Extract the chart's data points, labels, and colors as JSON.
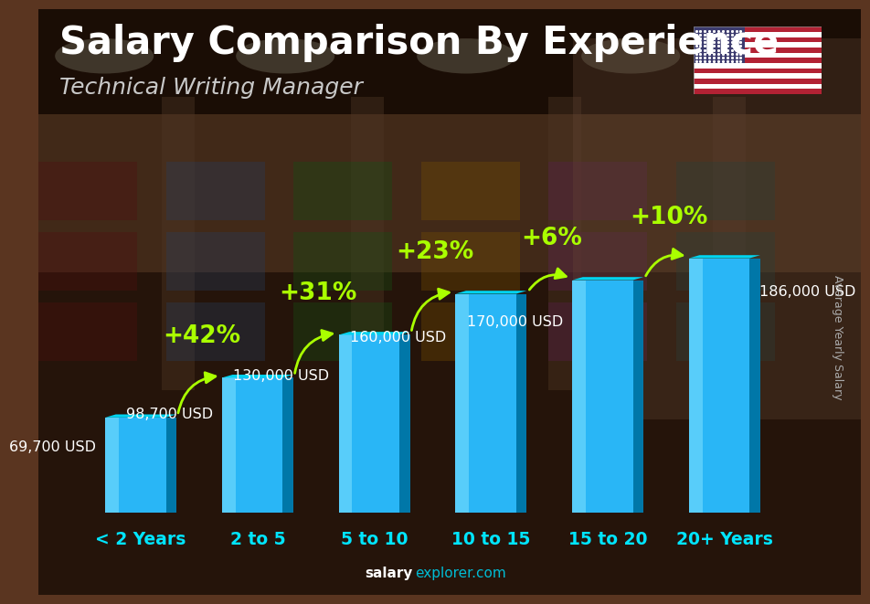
{
  "title": "Salary Comparison By Experience",
  "subtitle": "Technical Writing Manager",
  "ylabel": "Average Yearly Salary",
  "watermark": "salaryexplorer.com",
  "categories": [
    "< 2 Years",
    "2 to 5",
    "5 to 10",
    "10 to 15",
    "15 to 20",
    "20+ Years"
  ],
  "values": [
    69700,
    98700,
    130000,
    160000,
    170000,
    186000
  ],
  "value_labels": [
    "69,700 USD",
    "98,700 USD",
    "130,000 USD",
    "160,000 USD",
    "170,000 USD",
    "186,000 USD"
  ],
  "pct_labels": [
    "+42%",
    "+31%",
    "+23%",
    "+6%",
    "+10%"
  ],
  "bar_color_main": "#29b6f6",
  "bar_color_side": "#0077a8",
  "bar_color_top": "#00d4f0",
  "bar_highlight": "#80e0ff",
  "bg_color": "#5a3520",
  "title_color": "#ffffff",
  "subtitle_color": "#c8c8c8",
  "label_color": "#ffffff",
  "pct_color": "#aaff00",
  "category_color": "#00e5ff",
  "watermark_bold_color": "#ffffff",
  "watermark_normal_color": "#00bcd4",
  "ylabel_color": "#aaaaaa",
  "title_fontsize": 30,
  "subtitle_fontsize": 18,
  "value_fontsize": 11.5,
  "pct_fontsize": 19,
  "cat_fontsize": 13.5
}
